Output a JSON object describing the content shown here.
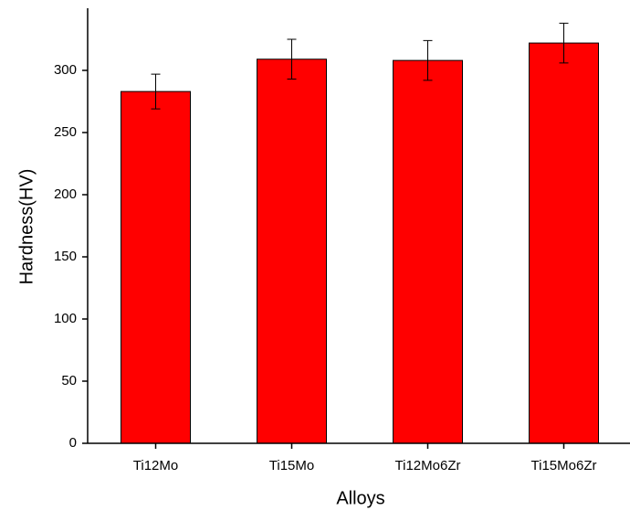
{
  "chart_data": {
    "type": "bar",
    "x_label": "Alloys",
    "y_label": "Hardness(HV)",
    "categories": [
      "Ti12Mo",
      "Ti15Mo",
      "Ti12Mo6Zr",
      "Ti15Mo6Zr"
    ],
    "values": [
      283,
      309,
      308,
      322
    ],
    "errors": [
      14,
      16,
      16,
      16
    ],
    "color": "#ff0000",
    "ylim": [
      0,
      350
    ],
    "yticks": [
      0,
      50,
      100,
      150,
      200,
      250,
      300
    ],
    "grid": false
  }
}
